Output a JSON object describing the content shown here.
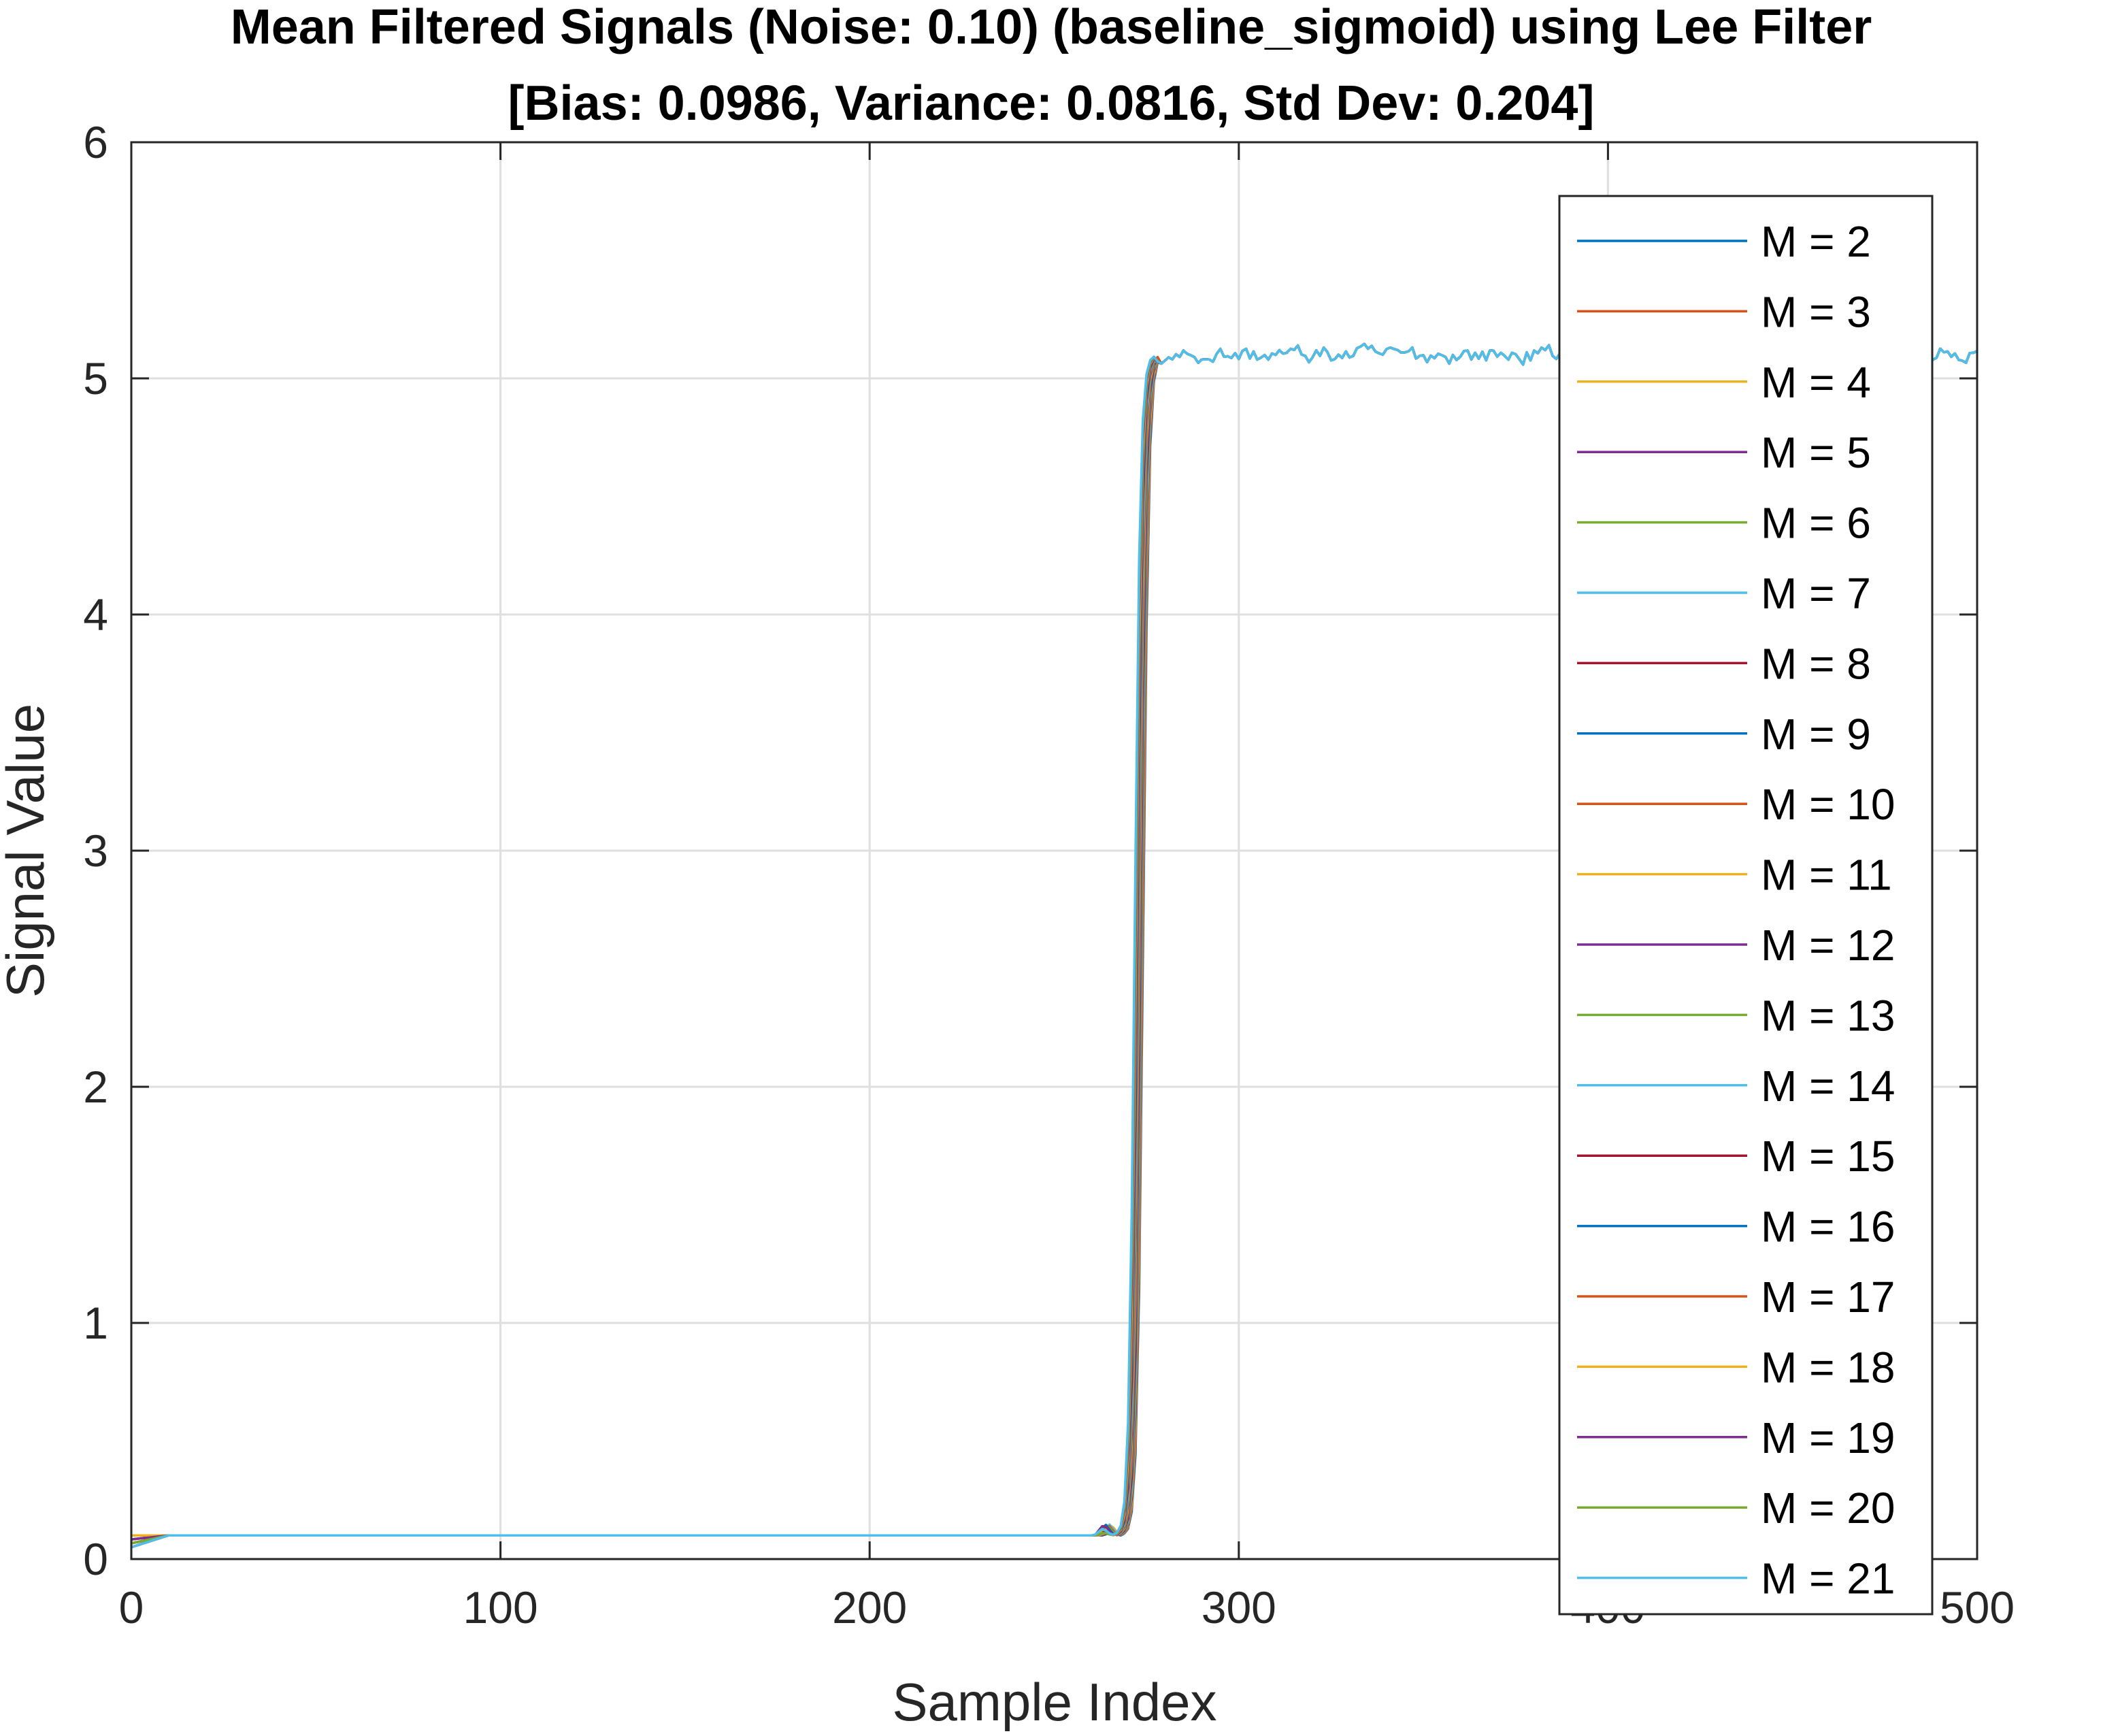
{
  "chart_data": {
    "type": "line",
    "title": [
      "Mean Filtered Signals (Noise: 0.10) (baseline_sigmoid) using Lee Filter",
      "[Bias: 0.0986, Variance: 0.0816, Std Dev: 0.204]"
    ],
    "xlabel": "Sample Index",
    "ylabel": "Signal Value",
    "xlim": [
      0,
      500
    ],
    "ylim": [
      0,
      6
    ],
    "xticks": [
      "0",
      "100",
      "200",
      "300",
      "400",
      "500"
    ],
    "yticks": [
      "0",
      "1",
      "2",
      "3",
      "4",
      "5",
      "6"
    ],
    "grid": true,
    "legend_position": "top-right",
    "signal_profile": {
      "low_level": 0.1,
      "high_level": 5.1,
      "transition_start": 268,
      "transition_end": 279,
      "noise_amplitude": 0.03
    },
    "series": [
      {
        "name": "M = 2",
        "color": "#0072BD"
      },
      {
        "name": "M = 3",
        "color": "#D95319"
      },
      {
        "name": "M = 4",
        "color": "#EDB120"
      },
      {
        "name": "M = 5",
        "color": "#7E2F8E"
      },
      {
        "name": "M = 6",
        "color": "#77AC30"
      },
      {
        "name": "M = 7",
        "color": "#4DBEEE"
      },
      {
        "name": "M = 8",
        "color": "#A2142F"
      },
      {
        "name": "M = 9",
        "color": "#0072BD"
      },
      {
        "name": "M = 10",
        "color": "#D95319"
      },
      {
        "name": "M = 11",
        "color": "#EDB120"
      },
      {
        "name": "M = 12",
        "color": "#7E2F8E"
      },
      {
        "name": "M = 13",
        "color": "#77AC30"
      },
      {
        "name": "M = 14",
        "color": "#4DBEEE"
      },
      {
        "name": "M = 15",
        "color": "#A2142F"
      },
      {
        "name": "M = 16",
        "color": "#0072BD"
      },
      {
        "name": "M = 17",
        "color": "#D95319"
      },
      {
        "name": "M = 18",
        "color": "#EDB120"
      },
      {
        "name": "M = 19",
        "color": "#7E2F8E"
      },
      {
        "name": "M = 20",
        "color": "#77AC30"
      },
      {
        "name": "M = 21",
        "color": "#4DBEEE"
      }
    ]
  }
}
